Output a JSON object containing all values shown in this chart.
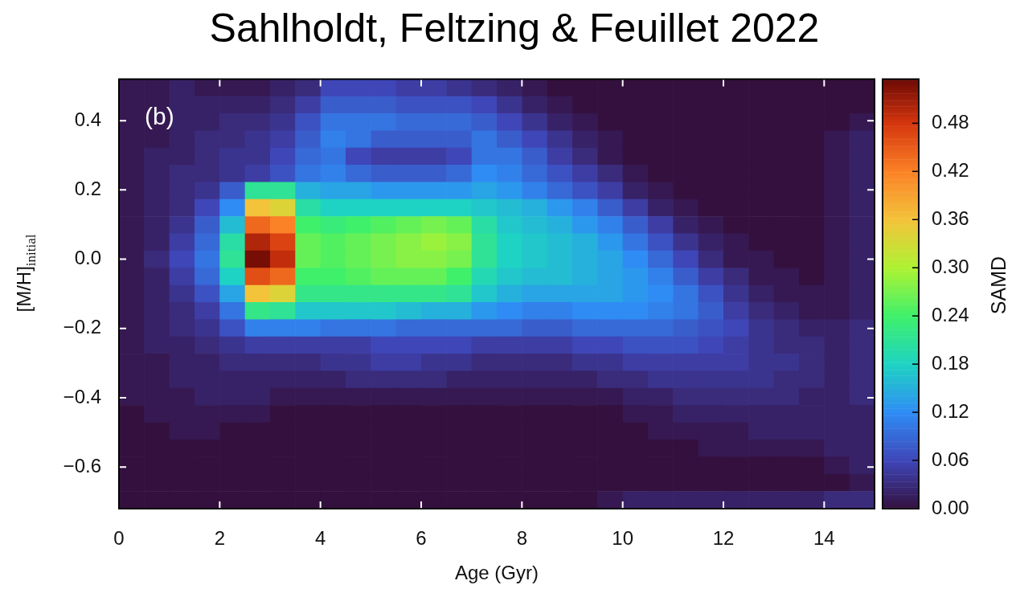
{
  "chart_data": {
    "type": "heatmap",
    "title": "Sahlholdt, Feltzing & Feuillet 2022",
    "xlabel": "Age (Gyr)",
    "ylabel": "[M/H]$_{initial}$",
    "clabel": "SAMD",
    "annotations": [
      "(b)"
    ],
    "x": [
      0.25,
      0.75,
      1.25,
      1.75,
      2.25,
      2.75,
      3.25,
      3.75,
      4.25,
      4.75,
      5.25,
      5.75,
      6.25,
      6.75,
      7.25,
      7.75,
      8.25,
      8.75,
      9.25,
      9.75,
      10.25,
      10.75,
      11.25,
      11.75,
      12.25,
      12.75,
      13.25,
      13.75,
      14.25,
      14.75
    ],
    "y": [
      0.495,
      0.446,
      0.396,
      0.347,
      0.297,
      0.248,
      0.198,
      0.149,
      0.099,
      0.05,
      0,
      -0.05,
      -0.099,
      -0.149,
      -0.198,
      -0.248,
      -0.297,
      -0.347,
      -0.396,
      -0.446,
      -0.496,
      -0.545,
      -0.595,
      -0.645,
      -0.694
    ],
    "xlim": [
      0,
      15
    ],
    "xticks": [
      0,
      2,
      4,
      6,
      8,
      10,
      12,
      14
    ],
    "ylim": [
      -0.72,
      0.52
    ],
    "yticks": [
      {
        "value": -0.6,
        "label": "−0.6"
      },
      {
        "value": -0.4,
        "label": "−0.4"
      },
      {
        "value": -0.2,
        "label": "−0.2"
      },
      {
        "value": 0,
        "label": "0.0"
      },
      0.2,
      0.4
    ],
    "clim": [
      0,
      0.535
    ],
    "cticks": [
      {
        "value": 0,
        "label": "0.00"
      },
      0.06,
      0.12,
      0.18,
      0.24,
      {
        "value": 0.3,
        "label": "0.30"
      },
      0.36,
      0.42,
      0.48
    ],
    "cells": [
      [
        0.01,
        0.01,
        0.02,
        0.01,
        0.01,
        0.01,
        0.02,
        0.03,
        0.06,
        0.06,
        0.06,
        0.05,
        0.05,
        0.04,
        0.03,
        0.02,
        0.01,
        0,
        0,
        0,
        0,
        0,
        0,
        0,
        0,
        0,
        0,
        0,
        0,
        0
      ],
      [
        0.01,
        0.01,
        0.02,
        0.02,
        0.02,
        0.02,
        0.03,
        0.05,
        0.08,
        0.08,
        0.08,
        0.07,
        0.07,
        0.07,
        0.06,
        0.04,
        0.02,
        0.01,
        0,
        0,
        0,
        0,
        0,
        0,
        0,
        0,
        0,
        0,
        0,
        0
      ],
      [
        0.01,
        0.01,
        0.02,
        0.02,
        0.03,
        0.03,
        0.04,
        0.07,
        0.1,
        0.1,
        0.1,
        0.09,
        0.09,
        0.09,
        0.08,
        0.06,
        0.04,
        0.02,
        0.01,
        0,
        0,
        0,
        0,
        0,
        0,
        0,
        0,
        0,
        0,
        0.01
      ],
      [
        0.01,
        0.01,
        0.02,
        0.03,
        0.03,
        0.04,
        0.05,
        0.08,
        0.11,
        0.1,
        0.08,
        0.08,
        0.08,
        0.08,
        0.1,
        0.08,
        0.06,
        0.04,
        0.02,
        0.01,
        0,
        0,
        0,
        0,
        0,
        0,
        0,
        0,
        0.01,
        0.02
      ],
      [
        0.01,
        0.02,
        0.02,
        0.03,
        0.04,
        0.04,
        0.06,
        0.09,
        0.1,
        0.06,
        0.05,
        0.05,
        0.05,
        0.06,
        0.1,
        0.1,
        0.08,
        0.05,
        0.03,
        0.01,
        0,
        0,
        0,
        0,
        0,
        0,
        0,
        0,
        0.01,
        0.02
      ],
      [
        0.01,
        0.02,
        0.03,
        0.03,
        0.04,
        0.05,
        0.07,
        0.1,
        0.11,
        0.09,
        0.08,
        0.08,
        0.08,
        0.09,
        0.12,
        0.11,
        0.09,
        0.07,
        0.05,
        0.03,
        0.01,
        0,
        0,
        0,
        0,
        0,
        0,
        0,
        0.01,
        0.02
      ],
      [
        0.01,
        0.02,
        0.03,
        0.04,
        0.08,
        0.21,
        0.21,
        0.15,
        0.14,
        0.14,
        0.13,
        0.13,
        0.13,
        0.13,
        0.14,
        0.13,
        0.11,
        0.09,
        0.07,
        0.05,
        0.02,
        0.01,
        0,
        0,
        0,
        0,
        0,
        0,
        0.01,
        0.02
      ],
      [
        0.01,
        0.02,
        0.03,
        0.06,
        0.12,
        0.36,
        0.34,
        0.2,
        0.18,
        0.18,
        0.18,
        0.18,
        0.18,
        0.18,
        0.17,
        0.16,
        0.15,
        0.13,
        0.11,
        0.08,
        0.05,
        0.02,
        0.01,
        0,
        0,
        0,
        0,
        0,
        0.01,
        0.02
      ],
      [
        0.01,
        0.02,
        0.04,
        0.08,
        0.16,
        0.44,
        0.42,
        0.24,
        0.23,
        0.24,
        0.25,
        0.26,
        0.27,
        0.26,
        0.2,
        0.17,
        0.16,
        0.15,
        0.13,
        0.11,
        0.08,
        0.05,
        0.02,
        0.01,
        0,
        0,
        0,
        0,
        0.01,
        0.02
      ],
      [
        0.01,
        0.02,
        0.05,
        0.09,
        0.2,
        0.5,
        0.47,
        0.26,
        0.25,
        0.26,
        0.27,
        0.28,
        0.29,
        0.28,
        0.21,
        0.18,
        0.17,
        0.16,
        0.15,
        0.13,
        0.1,
        0.07,
        0.04,
        0.02,
        0.01,
        0,
        0,
        0,
        0.01,
        0.02
      ],
      [
        0.01,
        0.03,
        0.06,
        0.1,
        0.21,
        0.53,
        0.49,
        0.26,
        0.25,
        0.26,
        0.27,
        0.28,
        0.28,
        0.27,
        0.21,
        0.18,
        0.17,
        0.16,
        0.15,
        0.14,
        0.12,
        0.09,
        0.06,
        0.03,
        0.01,
        0.01,
        0,
        0,
        0.01,
        0.02
      ],
      [
        0.01,
        0.02,
        0.05,
        0.09,
        0.18,
        0.46,
        0.44,
        0.24,
        0.24,
        0.25,
        0.26,
        0.26,
        0.26,
        0.24,
        0.19,
        0.17,
        0.16,
        0.16,
        0.15,
        0.14,
        0.13,
        0.11,
        0.08,
        0.05,
        0.03,
        0.01,
        0.01,
        0,
        0.01,
        0.02
      ],
      [
        0.01,
        0.02,
        0.04,
        0.07,
        0.14,
        0.36,
        0.34,
        0.22,
        0.22,
        0.22,
        0.22,
        0.22,
        0.22,
        0.21,
        0.17,
        0.15,
        0.14,
        0.14,
        0.14,
        0.14,
        0.13,
        0.12,
        0.1,
        0.07,
        0.04,
        0.02,
        0.01,
        0.01,
        0.01,
        0.02
      ],
      [
        0.01,
        0.02,
        0.03,
        0.05,
        0.1,
        0.22,
        0.21,
        0.17,
        0.17,
        0.17,
        0.17,
        0.16,
        0.15,
        0.15,
        0.13,
        0.12,
        0.11,
        0.11,
        0.12,
        0.12,
        0.12,
        0.11,
        0.1,
        0.08,
        0.05,
        0.03,
        0.02,
        0.01,
        0.01,
        0.02
      ],
      [
        0.01,
        0.02,
        0.03,
        0.04,
        0.07,
        0.11,
        0.11,
        0.11,
        0.1,
        0.1,
        0.1,
        0.09,
        0.09,
        0.09,
        0.09,
        0.09,
        0.08,
        0.08,
        0.09,
        0.09,
        0.09,
        0.09,
        0.08,
        0.07,
        0.06,
        0.04,
        0.03,
        0.02,
        0.02,
        0.03
      ],
      [
        0.01,
        0.02,
        0.02,
        0.03,
        0.04,
        0.05,
        0.05,
        0.05,
        0.05,
        0.05,
        0.06,
        0.06,
        0.06,
        0.06,
        0.05,
        0.05,
        0.05,
        0.05,
        0.06,
        0.06,
        0.07,
        0.07,
        0.07,
        0.06,
        0.05,
        0.04,
        0.03,
        0.03,
        0.02,
        0.03
      ],
      [
        0.01,
        0.01,
        0.02,
        0.02,
        0.03,
        0.03,
        0.03,
        0.03,
        0.04,
        0.04,
        0.05,
        0.05,
        0.04,
        0.04,
        0.03,
        0.03,
        0.03,
        0.03,
        0.04,
        0.04,
        0.05,
        0.05,
        0.05,
        0.05,
        0.05,
        0.04,
        0.04,
        0.03,
        0.02,
        0.03
      ],
      [
        0.01,
        0.01,
        0.02,
        0.02,
        0.02,
        0.02,
        0.02,
        0.02,
        0.02,
        0.03,
        0.03,
        0.03,
        0.03,
        0.02,
        0.02,
        0.02,
        0.02,
        0.02,
        0.02,
        0.03,
        0.03,
        0.04,
        0.04,
        0.04,
        0.04,
        0.04,
        0.03,
        0.03,
        0.02,
        0.03
      ],
      [
        0.01,
        0.01,
        0.01,
        0.02,
        0.02,
        0.02,
        0.01,
        0.01,
        0.01,
        0.01,
        0.01,
        0.01,
        0.01,
        0.01,
        0.01,
        0.01,
        0.01,
        0.01,
        0.01,
        0.01,
        0.02,
        0.02,
        0.03,
        0.03,
        0.03,
        0.03,
        0.03,
        0.02,
        0.02,
        0.03
      ],
      [
        0,
        0.01,
        0.01,
        0.01,
        0.01,
        0.01,
        0,
        0,
        0,
        0,
        0,
        0,
        0,
        0,
        0,
        0,
        0,
        0,
        0,
        0,
        0.01,
        0.01,
        0.02,
        0.02,
        0.02,
        0.02,
        0.02,
        0.02,
        0.02,
        0.02
      ],
      [
        0,
        0,
        0.01,
        0.01,
        0,
        0,
        0,
        0,
        0,
        0,
        0,
        0,
        0,
        0,
        0,
        0,
        0,
        0,
        0,
        0,
        0,
        0.01,
        0.01,
        0.01,
        0.01,
        0.02,
        0.02,
        0.02,
        0.02,
        0.02
      ],
      [
        0,
        0,
        0,
        0,
        0,
        0,
        0,
        0,
        0,
        0,
        0,
        0,
        0,
        0,
        0,
        0,
        0,
        0,
        0,
        0,
        0,
        0,
        0,
        0.01,
        0.01,
        0.01,
        0.01,
        0.01,
        0.02,
        0.02
      ],
      [
        0,
        0,
        0,
        0,
        0,
        0,
        0,
        0,
        0,
        0,
        0,
        0,
        0,
        0,
        0,
        0,
        0,
        0,
        0,
        0,
        0,
        0,
        0,
        0,
        0,
        0,
        0,
        0,
        0.01,
        0.02
      ],
      [
        0,
        0,
        0,
        0,
        0,
        0,
        0,
        0,
        0,
        0,
        0,
        0,
        0,
        0,
        0,
        0,
        0,
        0,
        0,
        0,
        0,
        0,
        0,
        0,
        0,
        0,
        0,
        0,
        0,
        0.01
      ],
      [
        0,
        0,
        0,
        0,
        0,
        0,
        0,
        0,
        0,
        0,
        0,
        0,
        0,
        0,
        0,
        0,
        0,
        0,
        0,
        0.01,
        0.02,
        0.02,
        0.02,
        0.02,
        0.02,
        0.02,
        0.02,
        0.02,
        0.03,
        0.03
      ]
    ]
  }
}
